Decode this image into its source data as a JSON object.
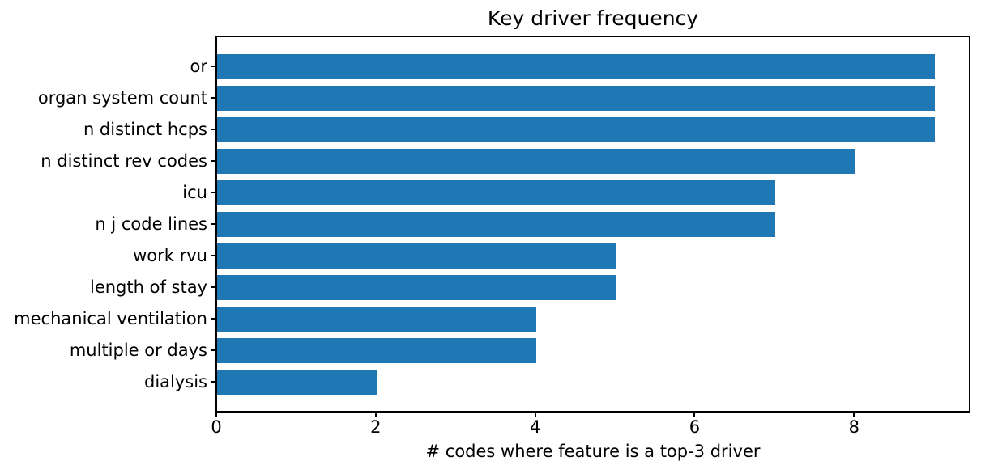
{
  "chart_data": {
    "type": "bar",
    "orientation": "horizontal",
    "title": "Key driver frequency",
    "xlabel": "# codes where feature is a top-3 driver",
    "ylabel": "",
    "categories": [
      "or",
      "organ system count",
      "n distinct hcps",
      "n distinct rev codes",
      "icu",
      "n j code lines",
      "work rvu",
      "length of stay",
      "mechanical ventilation",
      "multiple or days",
      "dialysis"
    ],
    "values": [
      9,
      9,
      9,
      8,
      7,
      7,
      5,
      5,
      4,
      4,
      2
    ],
    "x_ticks": [
      "0",
      "2",
      "4",
      "6",
      "8"
    ],
    "x_tick_values": [
      0,
      2,
      4,
      6,
      8
    ],
    "xlim": [
      0,
      9.45
    ],
    "bar_color": "#1f77b4",
    "spine_color": "#000000",
    "grid": false,
    "legend": null
  }
}
